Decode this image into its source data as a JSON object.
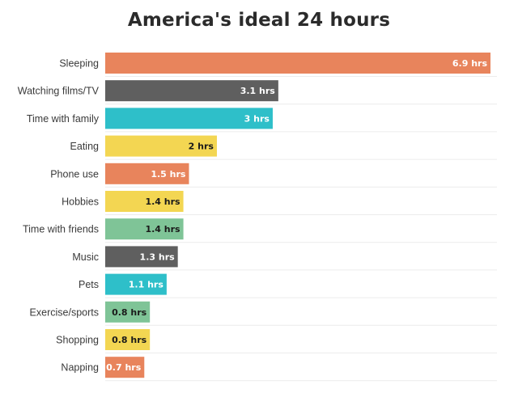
{
  "chart_data": {
    "type": "bar",
    "orientation": "horizontal",
    "title": "America's ideal 24 hours",
    "xlabel": "",
    "ylabel": "",
    "categories": [
      "Sleeping",
      "Watching films/TV",
      "Time with family",
      "Eating",
      "Phone use",
      "Hobbies",
      "Time with friends",
      "Music",
      "Pets",
      "Exercise/sports",
      "Shopping",
      "Napping"
    ],
    "values": [
      6.9,
      3.1,
      3,
      2,
      1.5,
      1.4,
      1.4,
      1.3,
      1.1,
      0.8,
      0.8,
      0.7
    ],
    "value_labels": [
      "6.9 hrs",
      "3.1 hrs",
      "3 hrs",
      "2 hrs",
      "1.5 hrs",
      "1.4 hrs",
      "1.4 hrs",
      "1.3 hrs",
      "1.1 hrs",
      "0.8 hrs",
      "0.8 hrs",
      "0.7 hrs"
    ],
    "bar_colors": [
      "#e8845c",
      "#5f5f5f",
      "#2ebfc9",
      "#f3d652",
      "#e8845c",
      "#f3d652",
      "#7fc497",
      "#5f5f5f",
      "#2ebfc9",
      "#7fc497",
      "#f3d652",
      "#e8845c"
    ],
    "label_colors": [
      "#ffffff",
      "#ffffff",
      "#ffffff",
      "#1a1a1a",
      "#ffffff",
      "#1a1a1a",
      "#1a1a1a",
      "#ffffff",
      "#ffffff",
      "#1a1a1a",
      "#1a1a1a",
      "#ffffff"
    ],
    "xlim": [
      0,
      6.9
    ],
    "grid": true,
    "legend": "none"
  }
}
